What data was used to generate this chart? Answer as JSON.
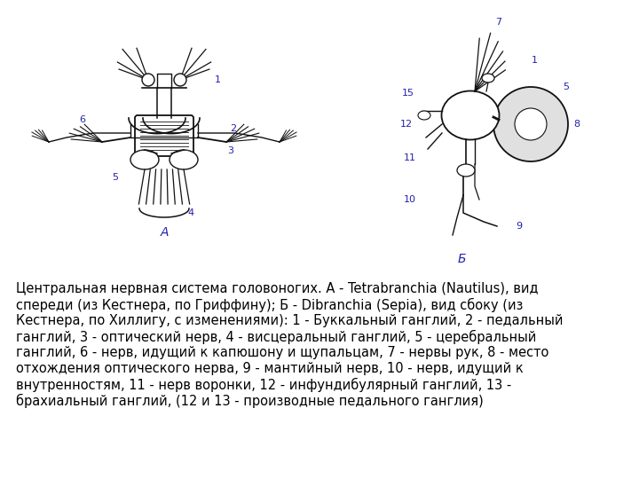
{
  "bg_color": "#ffffff",
  "text_color": "#000000",
  "blue_label_color": "#2222aa",
  "caption_line1": "Центральная нервная система головоногих. А - Tetrabranchia (Nautilus), вид",
  "caption_line2": "спереди (из Кестнера, по Гриффину); Б - Dibranchia (Sepia), вид сбоку (из",
  "caption_line3": "Кестнера, по Хиллигу, с изменениями): 1 - Буккальный ганглий, 2 - педальный",
  "caption_line4": "ганглий, 3 - оптический нерв, 4 - висцеральный ганглий, 5 - церебральный",
  "caption_line5": "ганглий, 6 - нерв, идущий к капюшону и щупальцам, 7 - нервы рук, 8 - место",
  "caption_line6": "отхождения оптического нерва, 9 - мантийный нерв, 10 - нерв, идущий к",
  "caption_line7": "внутренностям, 11 - нерв воронки, 12 - инфундибулярный ганглий, 13 -",
  "caption_line8": "брахиальный ганглий, (12 и 13 - производные педального ганглия)",
  "caption_fontsize": 10.5,
  "label_fontsize": 8,
  "figsize": [
    7.2,
    5.4
  ],
  "dpi": 100
}
